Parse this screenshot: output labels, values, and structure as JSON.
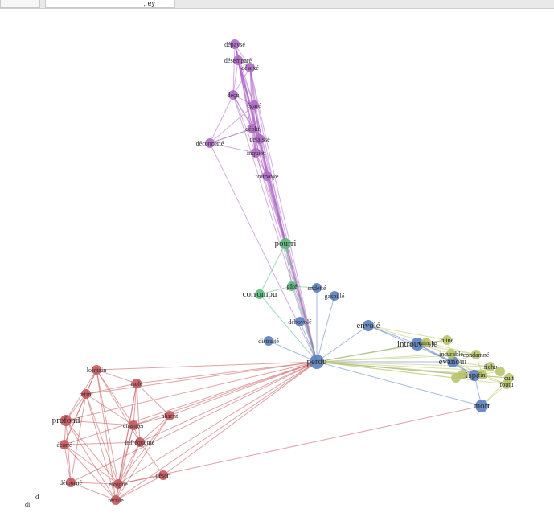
{
  "tabs": [
    {
      "label": ""
    },
    {
      "label": ", ey"
    }
  ],
  "stray_text": [
    "d",
    "di"
  ],
  "colors": {
    "purple": "#b06ac8",
    "green": "#5bb97a",
    "blue": "#5b7fc0",
    "olive": "#b9c46a",
    "red": "#c4585c"
  },
  "nodes": [
    {
      "id": "dep",
      "label": "dépaysé",
      "group": "purple"
    },
    {
      "id": "des",
      "label": "désemparé",
      "group": "purple"
    },
    {
      "id": "dex",
      "label": "désaxé",
      "group": "purple"
    },
    {
      "id": "dec",
      "label": "déçu",
      "group": "purple"
    },
    {
      "id": "ega",
      "label": "égaré",
      "group": "purple"
    },
    {
      "id": "pk",
      "label": "dépkt",
      "group": "purple"
    },
    {
      "id": "dl",
      "label": "délaissé",
      "group": "purple"
    },
    {
      "id": "dco",
      "label": "déconcerté",
      "group": "purple"
    },
    {
      "id": "inq",
      "label": "inquiet",
      "group": "purple"
    },
    {
      "id": "fou",
      "label": "fourvoyé",
      "group": "purple"
    },
    {
      "id": "pou",
      "label": "pourri",
      "group": "green"
    },
    {
      "id": "gat",
      "label": "gâté",
      "group": "green"
    },
    {
      "id": "cor",
      "label": "corrompu",
      "group": "green"
    },
    {
      "id": "end",
      "label": "endetté",
      "group": "blue"
    },
    {
      "id": "gas",
      "label": "gaspillé",
      "group": "blue"
    },
    {
      "id": "deb",
      "label": "débovolé",
      "group": "blue"
    },
    {
      "id": "dis",
      "label": "distraité",
      "group": "blue"
    },
    {
      "id": "per",
      "label": "perdu",
      "group": "blue"
    },
    {
      "id": "env",
      "label": "envolé",
      "group": "blue"
    },
    {
      "id": "int",
      "label": "introuvable",
      "group": "blue"
    },
    {
      "id": "eva",
      "label": "évanoui",
      "group": "blue"
    },
    {
      "id": "dpa",
      "label": "disparu",
      "group": "blue"
    },
    {
      "id": "mor",
      "label": "mort",
      "group": "blue"
    },
    {
      "id": "o1",
      "label": "ruiné",
      "group": "olive"
    },
    {
      "id": "o2",
      "label": "vaincu",
      "group": "olive"
    },
    {
      "id": "o3",
      "label": "incurable",
      "group": "olive"
    },
    {
      "id": "o4",
      "label": "condamné",
      "group": "olive"
    },
    {
      "id": "o5",
      "label": "fichu",
      "group": "olive"
    },
    {
      "id": "o6",
      "label": "fini",
      "group": "olive"
    },
    {
      "id": "o7",
      "label": "foutu",
      "group": "olive"
    },
    {
      "id": "o8",
      "label": "cuit",
      "group": "olive"
    },
    {
      "id": "o9",
      "label": "",
      "group": "olive"
    },
    {
      "id": "o10",
      "label": "",
      "group": "olive"
    },
    {
      "id": "o11",
      "label": "",
      "group": "olive"
    },
    {
      "id": "lou",
      "label": "lointain",
      "group": "red"
    },
    {
      "id": "ise",
      "label": "isolé",
      "group": "red"
    },
    {
      "id": "ret",
      "label": "retiré",
      "group": "red"
    },
    {
      "id": "pro",
      "label": "profond",
      "group": "red"
    },
    {
      "id": "abs",
      "label": "absent",
      "group": "red"
    },
    {
      "id": "etr",
      "label": "étranger",
      "group": "red"
    },
    {
      "id": "ec",
      "label": "écarté",
      "group": "red"
    },
    {
      "id": "inf",
      "label": "infréquenté",
      "group": "red"
    },
    {
      "id": "dto",
      "label": "détourné",
      "group": "red"
    },
    {
      "id": "dse",
      "label": "désert",
      "group": "red"
    },
    {
      "id": "elo",
      "label": "éloigné",
      "group": "red"
    },
    {
      "id": "rec",
      "label": "reculé",
      "group": "red"
    }
  ],
  "edges": [
    [
      "dep",
      "des"
    ],
    [
      "dep",
      "dex"
    ],
    [
      "dep",
      "dec"
    ],
    [
      "dep",
      "ega"
    ],
    [
      "dep",
      "pk"
    ],
    [
      "dep",
      "inq"
    ],
    [
      "dep",
      "dl"
    ],
    [
      "des",
      "dex"
    ],
    [
      "des",
      "dec"
    ],
    [
      "des",
      "ega"
    ],
    [
      "des",
      "pk"
    ],
    [
      "des",
      "dl"
    ],
    [
      "des",
      "inq"
    ],
    [
      "des",
      "fou"
    ],
    [
      "dex",
      "dec"
    ],
    [
      "dex",
      "ega"
    ],
    [
      "dex",
      "pk"
    ],
    [
      "dex",
      "dl"
    ],
    [
      "dex",
      "inq"
    ],
    [
      "dex",
      "fou"
    ],
    [
      "dec",
      "ega"
    ],
    [
      "dec",
      "pk"
    ],
    [
      "dec",
      "dco"
    ],
    [
      "dec",
      "inq"
    ],
    [
      "dec",
      "dl"
    ],
    [
      "ega",
      "pk"
    ],
    [
      "ega",
      "dl"
    ],
    [
      "ega",
      "inq"
    ],
    [
      "ega",
      "fou"
    ],
    [
      "ega",
      "dco"
    ],
    [
      "pk",
      "dl"
    ],
    [
      "pk",
      "inq"
    ],
    [
      "pk",
      "dco"
    ],
    [
      "dl",
      "inq"
    ],
    [
      "dl",
      "fou"
    ],
    [
      "inq",
      "fou"
    ],
    [
      "dco",
      "inq"
    ],
    [
      "dco",
      "pk"
    ],
    [
      "dep",
      "per"
    ],
    [
      "des",
      "per"
    ],
    [
      "dex",
      "per"
    ],
    [
      "dec",
      "per"
    ],
    [
      "ega",
      "per"
    ],
    [
      "pk",
      "per"
    ],
    [
      "dl",
      "per"
    ],
    [
      "inq",
      "per"
    ],
    [
      "fou",
      "per"
    ],
    [
      "dco",
      "per"
    ],
    [
      "dep",
      "pou"
    ],
    [
      "des",
      "pou"
    ],
    [
      "dex",
      "pou"
    ],
    [
      "ega",
      "pou"
    ],
    [
      "dl",
      "pou"
    ],
    [
      "inq",
      "pou"
    ],
    [
      "fou",
      "pou"
    ],
    [
      "pk",
      "pou"
    ],
    [
      "pou",
      "gat"
    ],
    [
      "pou",
      "cor"
    ],
    [
      "gat",
      "cor"
    ],
    [
      "pou",
      "per"
    ],
    [
      "gat",
      "per"
    ],
    [
      "cor",
      "per"
    ],
    [
      "end",
      "per"
    ],
    [
      "gas",
      "per"
    ],
    [
      "deb",
      "per"
    ],
    [
      "dis",
      "per"
    ],
    [
      "gat",
      "end"
    ],
    [
      "per",
      "env"
    ],
    [
      "per",
      "int"
    ],
    [
      "per",
      "eva"
    ],
    [
      "per",
      "dpa"
    ],
    [
      "per",
      "mor"
    ],
    [
      "per",
      "o1"
    ],
    [
      "per",
      "o2"
    ],
    [
      "per",
      "o3"
    ],
    [
      "per",
      "o4"
    ],
    [
      "per",
      "o5"
    ],
    [
      "per",
      "o6"
    ],
    [
      "per",
      "o7"
    ],
    [
      "per",
      "o8"
    ],
    [
      "per",
      "o9"
    ],
    [
      "per",
      "o10"
    ],
    [
      "per",
      "o11"
    ],
    [
      "env",
      "int"
    ],
    [
      "int",
      "eva"
    ],
    [
      "eva",
      "dpa"
    ],
    [
      "dpa",
      "mor"
    ],
    [
      "int",
      "dpa"
    ],
    [
      "env",
      "eva"
    ],
    [
      "int",
      "o1"
    ],
    [
      "int",
      "o3"
    ],
    [
      "int",
      "o2"
    ],
    [
      "int",
      "o4"
    ],
    [
      "eva",
      "o3"
    ],
    [
      "eva",
      "o4"
    ],
    [
      "eva",
      "o5"
    ],
    [
      "eva",
      "o6"
    ],
    [
      "dpa",
      "o5"
    ],
    [
      "dpa",
      "o6"
    ],
    [
      "dpa",
      "o7"
    ],
    [
      "dpa",
      "o8"
    ],
    [
      "o1",
      "o2"
    ],
    [
      "o1",
      "o3"
    ],
    [
      "o2",
      "o4"
    ],
    [
      "o3",
      "o4"
    ],
    [
      "o4",
      "o6"
    ],
    [
      "o5",
      "o6"
    ],
    [
      "o6",
      "o7"
    ],
    [
      "o7",
      "o8"
    ],
    [
      "o8",
      "o9"
    ],
    [
      "o9",
      "o10"
    ],
    [
      "o10",
      "o11"
    ],
    [
      "o5",
      "o9"
    ],
    [
      "env",
      "o2"
    ],
    [
      "env",
      "o1"
    ],
    [
      "mor",
      "o8"
    ],
    [
      "mor",
      "o7"
    ],
    [
      "per",
      "lou"
    ],
    [
      "per",
      "ise"
    ],
    [
      "per",
      "ret"
    ],
    [
      "per",
      "pro"
    ],
    [
      "per",
      "abs"
    ],
    [
      "per",
      "etr"
    ],
    [
      "per",
      "ec"
    ],
    [
      "per",
      "inf"
    ],
    [
      "per",
      "dto"
    ],
    [
      "per",
      "dse"
    ],
    [
      "per",
      "elo"
    ],
    [
      "per",
      "rec"
    ],
    [
      "mor",
      "elo"
    ],
    [
      "lou",
      "ise"
    ],
    [
      "lou",
      "ret"
    ],
    [
      "lou",
      "pro"
    ],
    [
      "lou",
      "ec"
    ],
    [
      "lou",
      "etr"
    ],
    [
      "lou",
      "inf"
    ],
    [
      "lou",
      "elo"
    ],
    [
      "lou",
      "rec"
    ],
    [
      "ise",
      "ret"
    ],
    [
      "ise",
      "etr"
    ],
    [
      "ise",
      "inf"
    ],
    [
      "ise",
      "elo"
    ],
    [
      "ise",
      "rec"
    ],
    [
      "ise",
      "abs"
    ],
    [
      "ret",
      "pro"
    ],
    [
      "ret",
      "ec"
    ],
    [
      "ret",
      "elo"
    ],
    [
      "ret",
      "rec"
    ],
    [
      "ret",
      "dto"
    ],
    [
      "ret",
      "etr"
    ],
    [
      "pro",
      "ec"
    ],
    [
      "pro",
      "dto"
    ],
    [
      "pro",
      "elo"
    ],
    [
      "pro",
      "rec"
    ],
    [
      "pro",
      "etr"
    ],
    [
      "ec",
      "dto"
    ],
    [
      "ec",
      "elo"
    ],
    [
      "ec",
      "rec"
    ],
    [
      "ec",
      "inf"
    ],
    [
      "etr",
      "inf"
    ],
    [
      "etr",
      "abs"
    ],
    [
      "etr",
      "elo"
    ],
    [
      "etr",
      "rec"
    ],
    [
      "inf",
      "elo"
    ],
    [
      "inf",
      "rec"
    ],
    [
      "inf",
      "dse"
    ],
    [
      "inf",
      "abs"
    ],
    [
      "abs",
      "elo"
    ],
    [
      "abs",
      "rec"
    ],
    [
      "dto",
      "elo"
    ],
    [
      "dto",
      "rec"
    ],
    [
      "dse",
      "elo"
    ],
    [
      "dse",
      "rec"
    ],
    [
      "elo",
      "rec"
    ]
  ]
}
